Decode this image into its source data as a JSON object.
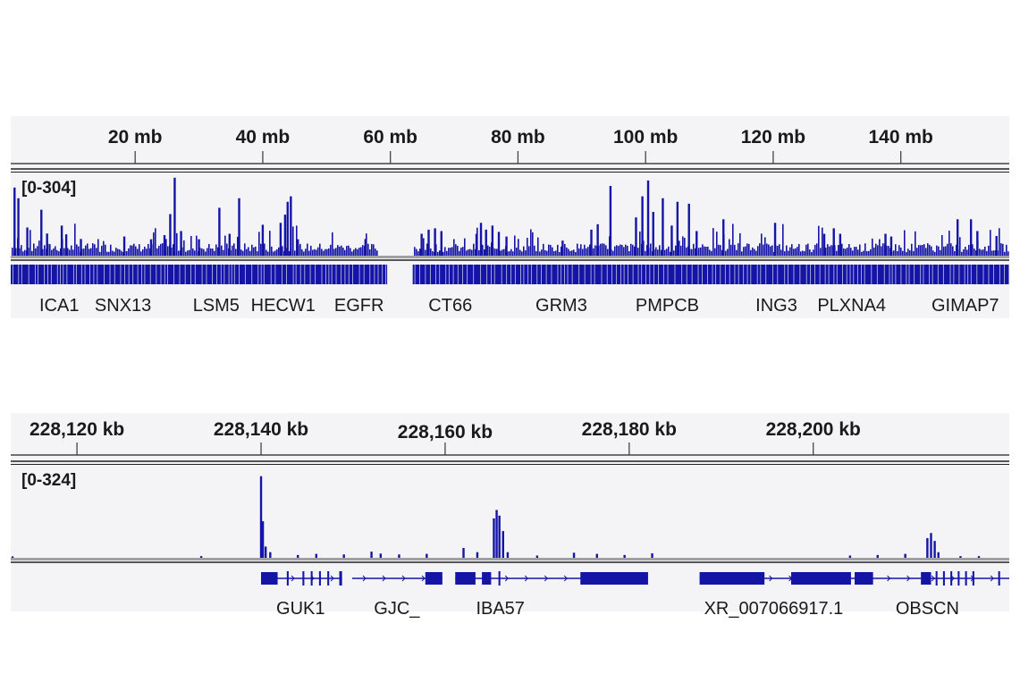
{
  "colors": {
    "signal": "#1414a6",
    "panel_bg": "#f4f4f7",
    "baseline": "#a0a0a0"
  },
  "chart_data": [
    {
      "type": "bar",
      "x_unit": "mb",
      "xlim": [
        0.5,
        157
      ],
      "tick_values": [
        20,
        40,
        60,
        80,
        100,
        120,
        140
      ],
      "tick_labels": [
        "20 mb",
        "40 mb",
        "60 mb",
        "80 mb",
        "100 mb",
        "120 mb",
        "140 mb"
      ],
      "data_range_label": "[0-304]",
      "ylim": [
        0,
        304
      ],
      "peaks": [
        [
          1.1,
          249
        ],
        [
          1.7,
          210
        ],
        [
          3.1,
          103
        ],
        [
          5.3,
          168
        ],
        [
          6.2,
          81
        ],
        [
          8.5,
          110
        ],
        [
          9.2,
          78
        ],
        [
          11.5,
          61
        ],
        [
          18.3,
          70
        ],
        [
          22.5,
          60
        ],
        [
          24.6,
          75
        ],
        [
          25.5,
          152
        ],
        [
          26.2,
          285
        ],
        [
          27.2,
          90
        ],
        [
          30.0,
          60
        ],
        [
          33.2,
          175
        ],
        [
          34.8,
          80
        ],
        [
          36.3,
          210
        ],
        [
          40.0,
          113
        ],
        [
          42.8,
          120
        ],
        [
          43.5,
          150
        ],
        [
          43.9,
          197
        ],
        [
          44.4,
          217
        ],
        [
          45.5,
          60
        ],
        [
          56.1,
          61
        ],
        [
          64.9,
          80
        ],
        [
          66.0,
          95
        ],
        [
          67.0,
          100
        ],
        [
          68.0,
          90
        ],
        [
          73.5,
          80
        ],
        [
          74.2,
          120
        ],
        [
          75.0,
          95
        ],
        [
          76.0,
          110
        ],
        [
          77.0,
          87
        ],
        [
          78.2,
          70
        ],
        [
          87.0,
          55
        ],
        [
          91.5,
          95
        ],
        [
          92.5,
          115
        ],
        [
          94.5,
          255
        ],
        [
          98.5,
          140
        ],
        [
          99.5,
          217
        ],
        [
          100.4,
          275
        ],
        [
          101.2,
          160
        ],
        [
          102.7,
          210
        ],
        [
          104.1,
          110
        ],
        [
          105.0,
          197
        ],
        [
          106.8,
          190
        ],
        [
          108.0,
          90
        ],
        [
          112.2,
          133
        ],
        [
          120.3,
          120
        ],
        [
          128.0,
          80
        ],
        [
          129.5,
          100
        ],
        [
          130.5,
          80
        ],
        [
          137.6,
          80
        ],
        [
          138.5,
          70
        ],
        [
          148.9,
          133
        ],
        [
          151.0,
          133
        ],
        [
          152.0,
          90
        ],
        [
          155.0,
          72
        ]
      ],
      "gene_regions": [
        [
          0.5,
          59.5
        ],
        [
          63.5,
          157
        ]
      ],
      "genes": [
        {
          "name": "ICA1",
          "pos": 8.1
        },
        {
          "name": "SNX13",
          "pos": 18.1
        },
        {
          "name": "LSM5",
          "pos": 32.7
        },
        {
          "name": "HECW1",
          "pos": 43.2
        },
        {
          "name": "EGFR",
          "pos": 55.1
        },
        {
          "name": "CT66",
          "pos": 69.4
        },
        {
          "name": "GRM3",
          "pos": 86.8
        },
        {
          "name": "PMPCB",
          "pos": 103.4
        },
        {
          "name": "ING3",
          "pos": 120.5
        },
        {
          "name": "PLXNA4",
          "pos": 132.3
        },
        {
          "name": "GIMAP7",
          "pos": 150.1
        }
      ]
    },
    {
      "type": "bar",
      "x_unit": "kb",
      "xlim": [
        228112.8,
        228221.3
      ],
      "tick_values": [
        228120,
        228140,
        228160,
        228180,
        228200
      ],
      "tick_labels": [
        "228,120 kb",
        "228,140 kb",
        "228,160 kb",
        "228,180 kb",
        "228,200 kb"
      ],
      "data_range_label": "[0-324]",
      "ylim": [
        0,
        324
      ],
      "peaks": [
        [
          228113.0,
          5
        ],
        [
          228133.5,
          6
        ],
        [
          228140.0,
          290
        ],
        [
          228140.2,
          130
        ],
        [
          228140.5,
          40
        ],
        [
          228141.0,
          20
        ],
        [
          228144.0,
          10
        ],
        [
          228146.0,
          14
        ],
        [
          228149.0,
          12
        ],
        [
          228152.0,
          22
        ],
        [
          228153.0,
          15
        ],
        [
          228155.0,
          12
        ],
        [
          228158.0,
          14
        ],
        [
          228162.0,
          35
        ],
        [
          228163.5,
          20
        ],
        [
          228165.3,
          140
        ],
        [
          228165.6,
          170
        ],
        [
          228165.9,
          150
        ],
        [
          228166.3,
          95
        ],
        [
          228166.8,
          20
        ],
        [
          228170.0,
          8
        ],
        [
          228174.0,
          18
        ],
        [
          228176.5,
          14
        ],
        [
          228179.5,
          10
        ],
        [
          228182.5,
          16
        ],
        [
          228204.0,
          8
        ],
        [
          228207.0,
          10
        ],
        [
          228210.0,
          14
        ],
        [
          228212.4,
          70
        ],
        [
          228212.8,
          88
        ],
        [
          228213.2,
          60
        ],
        [
          228213.6,
          20
        ],
        [
          228216.0,
          6
        ],
        [
          228218.0,
          6
        ]
      ],
      "gene_lines": [
        [
          228140.0,
          228148.8
        ],
        [
          228149.9,
          228159.7
        ],
        [
          228161.1,
          228182.05
        ],
        [
          228187.65,
          228211.7
        ],
        [
          228211.7,
          228221.3
        ]
      ],
      "exons": [
        [
          228140.0,
          228141.8,
          "thick"
        ],
        [
          228142.8,
          228143.0,
          "thin"
        ],
        [
          228144.5,
          228144.7,
          "thin"
        ],
        [
          228145.4,
          228145.6,
          "thin"
        ],
        [
          228146.3,
          228146.5,
          "thin"
        ],
        [
          228147.2,
          228147.4,
          "thin"
        ],
        [
          228148.5,
          228148.8,
          "thin"
        ],
        [
          228157.85,
          228159.7,
          "thick"
        ],
        [
          228161.1,
          228163.3,
          "thick"
        ],
        [
          228164.0,
          228165.0,
          "thick"
        ],
        [
          228165.8,
          228166.0,
          "thin"
        ],
        [
          228174.7,
          228182.05,
          "thick"
        ],
        [
          228187.65,
          228194.7,
          "thick"
        ],
        [
          228197.6,
          228204.1,
          "thick"
        ],
        [
          228204.5,
          228206.5,
          "thick"
        ],
        [
          228211.7,
          228212.8,
          "thick"
        ],
        [
          228213.3,
          228213.5,
          "thin"
        ],
        [
          228214.1,
          228214.3,
          "thin"
        ],
        [
          228214.9,
          228215.1,
          "thin"
        ],
        [
          228215.7,
          228215.9,
          "thin"
        ],
        [
          228216.5,
          228216.7,
          "thin"
        ],
        [
          228217.3,
          228217.5,
          "thin"
        ],
        [
          228220.1,
          228220.3,
          "thin"
        ]
      ],
      "genes": [
        {
          "name": "GUK1",
          "pos": 228144.3
        },
        {
          "name": "GJC_",
          "pos": 228154.75
        },
        {
          "name": "IBA57",
          "pos": 228166.0
        },
        {
          "name": "XR_007066917.1",
          "pos": 228195.7
        },
        {
          "name": "OBSCN",
          "pos": 228212.4
        }
      ]
    }
  ]
}
